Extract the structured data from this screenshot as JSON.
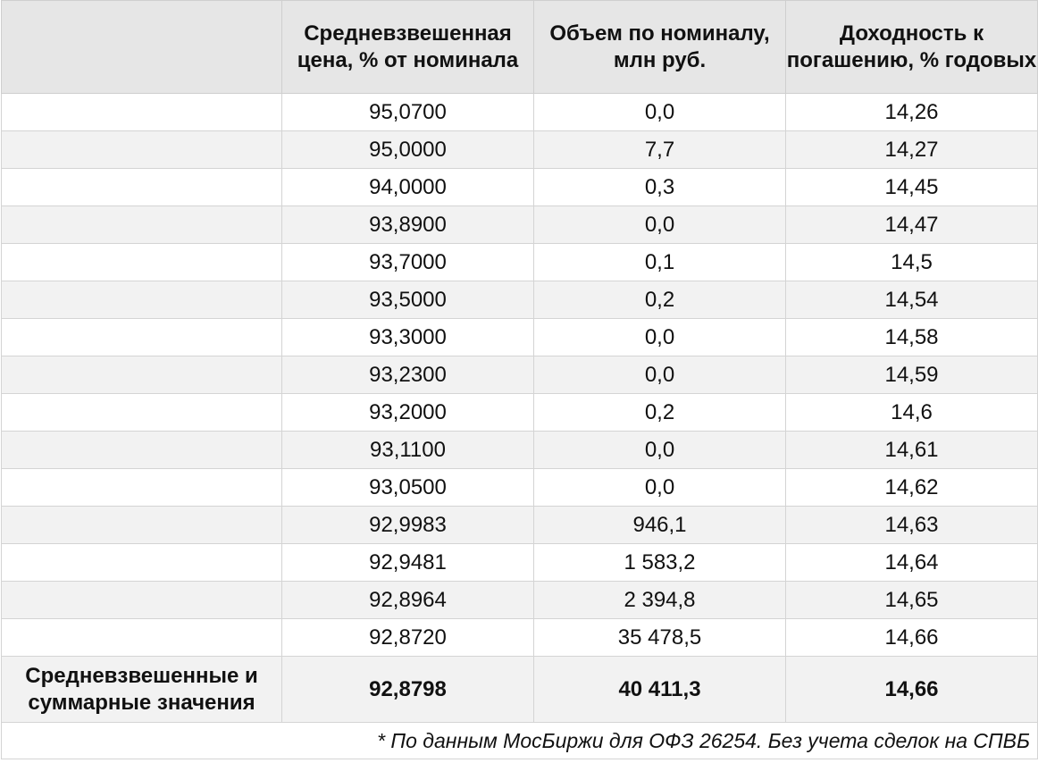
{
  "table": {
    "headers": [
      "",
      "Средневзвешенная цена, % от номинала",
      "Объем по номиналу, млн руб.",
      "Доходность к погашению, % годовых"
    ],
    "rows": [
      {
        "label": "",
        "price": "95,0700",
        "volume": "0,0",
        "yield": "14,26"
      },
      {
        "label": "",
        "price": "95,0000",
        "volume": "7,7",
        "yield": "14,27"
      },
      {
        "label": "",
        "price": "94,0000",
        "volume": "0,3",
        "yield": "14,45"
      },
      {
        "label": "",
        "price": "93,8900",
        "volume": "0,0",
        "yield": "14,47"
      },
      {
        "label": "",
        "price": "93,7000",
        "volume": "0,1",
        "yield": "14,5"
      },
      {
        "label": "",
        "price": "93,5000",
        "volume": "0,2",
        "yield": "14,54"
      },
      {
        "label": "",
        "price": "93,3000",
        "volume": "0,0",
        "yield": "14,58"
      },
      {
        "label": "",
        "price": "93,2300",
        "volume": "0,0",
        "yield": "14,59"
      },
      {
        "label": "",
        "price": "93,2000",
        "volume": "0,2",
        "yield": "14,6"
      },
      {
        "label": "",
        "price": "93,1100",
        "volume": "0,0",
        "yield": "14,61"
      },
      {
        "label": "",
        "price": "93,0500",
        "volume": "0,0",
        "yield": "14,62"
      },
      {
        "label": "",
        "price": "92,9983",
        "volume": "946,1",
        "yield": "14,63"
      },
      {
        "label": "",
        "price": "92,9481",
        "volume": "1 583,2",
        "yield": "14,64"
      },
      {
        "label": "",
        "price": "92,8964",
        "volume": "2 394,8",
        "yield": "14,65"
      },
      {
        "label": "",
        "price": "92,8720",
        "volume": "35 478,5",
        "yield": "14,66"
      }
    ],
    "summary": {
      "label": "Средневзвешенные и суммарные значения",
      "price": "92,8798",
      "volume": "40 411,3",
      "yield": "14,66"
    },
    "footnote": "* По данным МосБиржи для ОФЗ 26254. Без учета сделок на СПВБ"
  }
}
